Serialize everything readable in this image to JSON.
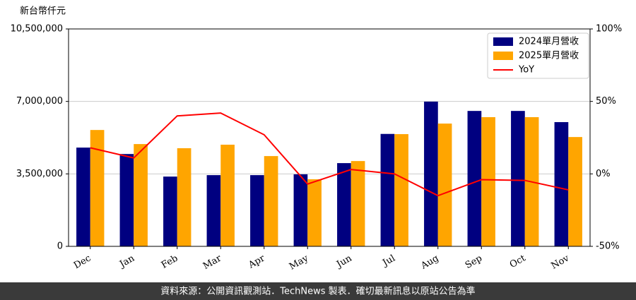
{
  "chart_data": {
    "type": "bar",
    "y_label": "新台幣仟元",
    "footer": "資料來源：公開資訊觀測站．TechNews 製表．確切最新訊息以原站公告為準",
    "categories": [
      "Dec",
      "Jan",
      "Feb",
      "Mar",
      "Apr",
      "May",
      "Jun",
      "Jul",
      "Aug",
      "Sep",
      "Oct",
      "Nov"
    ],
    "series": [
      {
        "name": "2024單月營收",
        "color": "#000080",
        "values": [
          4770000,
          4460000,
          3370000,
          3440000,
          3440000,
          3480000,
          4020000,
          5430000,
          6990000,
          6540000,
          6540000,
          6000000
        ]
      },
      {
        "name": "2025單月營收",
        "color": "#ffa500",
        "values": [
          5620000,
          4940000,
          4740000,
          4910000,
          4360000,
          3240000,
          4120000,
          5420000,
          5930000,
          6240000,
          6240000,
          5280000
        ]
      },
      {
        "name": "YoY",
        "color": "#ff0000",
        "type": "line",
        "axis": "y2",
        "values": [
          18,
          11,
          40,
          42,
          27,
          -7,
          3,
          0,
          -15,
          -4,
          -4.5,
          -11
        ]
      }
    ],
    "ylim": [
      0,
      10500000
    ],
    "yticks": [
      0,
      {
        "value": 3500000,
        "label": "3,500,000"
      },
      {
        "value": 7000000,
        "label": "7,000,000"
      },
      {
        "value": 10500000,
        "label": "10,500,000"
      }
    ],
    "y2lim": [
      -50,
      100
    ],
    "y2ticks": [
      {
        "value": -50,
        "label": "-50%"
      },
      {
        "value": 0,
        "label": "0%"
      },
      {
        "value": 50,
        "label": "50%"
      },
      {
        "value": 100,
        "label": "100%"
      }
    ],
    "grid": true,
    "legend": "upper right"
  }
}
